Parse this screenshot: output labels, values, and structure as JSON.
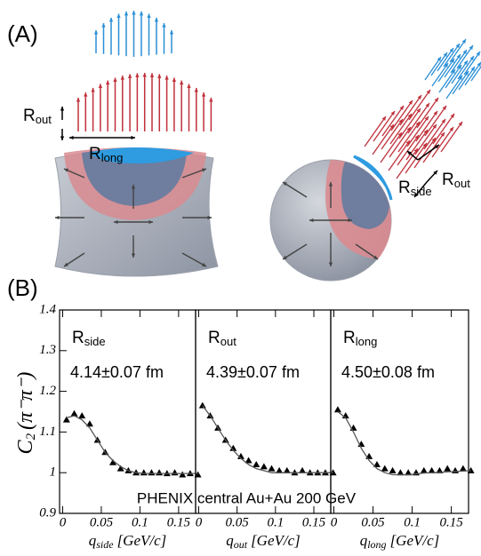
{
  "panel_a": {
    "label": "(A)",
    "left": {
      "r_out": {
        "main": "R",
        "sub": "out"
      },
      "r_long": {
        "main": "R",
        "sub": "long"
      }
    },
    "right": {
      "r_side": {
        "main": "R",
        "sub": "side"
      },
      "r_out": {
        "main": "R",
        "sub": "out"
      }
    }
  },
  "panel_b": {
    "label": "(B)",
    "y_label": {
      "main": "C",
      "sub": "2",
      "rest": "(π⁻π⁻)"
    },
    "annotation": "PHENIX  central Au+Au 200 GeV"
  },
  "chart_data": [
    {
      "type": "scatter",
      "radius": {
        "main": "R",
        "sub": "side"
      },
      "value_text": "4.14±0.07 fm",
      "x_label": {
        "main": "q",
        "sub": "side",
        "rest": "[GeV/c]"
      },
      "x": [
        0.005,
        0.015,
        0.025,
        0.035,
        0.045,
        0.055,
        0.065,
        0.075,
        0.085,
        0.095,
        0.105,
        0.115,
        0.125,
        0.135,
        0.145,
        0.155,
        0.165,
        0.175
      ],
      "series": [
        {
          "type": "scatter",
          "color": "#000000",
          "values": [
            1.13,
            1.145,
            1.14,
            1.12,
            1.08,
            1.05,
            1.025,
            1.01,
            1.005,
            1.0,
            1.0,
            1.0,
            1.0,
            0.998,
            1.0,
            0.995,
            0.998,
            0.995
          ]
        },
        {
          "type": "line",
          "color": "#555555",
          "values": [
            1.135,
            1.14,
            1.13,
            1.11,
            1.08,
            1.05,
            1.03,
            1.015,
            1.005,
            1.0,
            0.998,
            0.998,
            0.998,
            0.998,
            0.998,
            0.998,
            0.998,
            0.998
          ]
        }
      ],
      "xlim": [
        -0.004,
        0.172
      ],
      "ylim": [
        0.9,
        1.4
      ],
      "xticks": [
        0,
        0.05,
        0.1,
        0.15
      ],
      "yticks": [
        0.9,
        1,
        1.1,
        1.2,
        1.3,
        1.4
      ]
    },
    {
      "type": "scatter",
      "radius": {
        "main": "R",
        "sub": "out"
      },
      "value_text": "4.39±0.07 fm",
      "x_label": {
        "main": "q",
        "sub": "out",
        "rest": "[GeV/c]"
      },
      "x": [
        0.005,
        0.015,
        0.025,
        0.035,
        0.045,
        0.055,
        0.065,
        0.075,
        0.085,
        0.095,
        0.105,
        0.115,
        0.125,
        0.135,
        0.145,
        0.155,
        0.165,
        0.175
      ],
      "series": [
        {
          "type": "scatter",
          "color": "#000000",
          "values": [
            1.165,
            1.14,
            1.11,
            1.08,
            1.06,
            1.04,
            1.03,
            1.02,
            1.015,
            1.01,
            1.005,
            1.005,
            1.0,
            1.005,
            1.0,
            1.0,
            1.0,
            1.0
          ]
        },
        {
          "type": "line",
          "color": "#555555",
          "values": [
            1.165,
            1.14,
            1.11,
            1.08,
            1.055,
            1.035,
            1.02,
            1.01,
            1.005,
            1.0,
            1.0,
            1.0,
            1.0,
            1.0,
            1.0,
            1.0,
            1.0,
            1.0
          ]
        }
      ],
      "xlim": [
        -0.004,
        0.172
      ],
      "ylim": [
        0.9,
        1.4
      ],
      "xticks": [
        0,
        0.05,
        0.1,
        0.15
      ]
    },
    {
      "type": "scatter",
      "radius": {
        "main": "R",
        "sub": "long"
      },
      "value_text": "4.50±0.08 fm",
      "x_label": {
        "main": "q",
        "sub": "long",
        "rest": "[GeV/c]"
      },
      "x": [
        0.005,
        0.015,
        0.025,
        0.035,
        0.045,
        0.055,
        0.065,
        0.075,
        0.085,
        0.095,
        0.105,
        0.115,
        0.125,
        0.135,
        0.145,
        0.155,
        0.165,
        0.175
      ],
      "series": [
        {
          "type": "scatter",
          "color": "#000000",
          "values": [
            1.155,
            1.14,
            1.11,
            1.07,
            1.04,
            1.02,
            1.01,
            1.005,
            1.0,
            1.0,
            1.0,
            1.005,
            1.005,
            1.005,
            1.01,
            1.005,
            1.01,
            1.005
          ]
        },
        {
          "type": "line",
          "color": "#555555",
          "values": [
            1.15,
            1.135,
            1.1,
            1.06,
            1.03,
            1.01,
            1.0,
            0.995,
            0.995,
            0.995,
            0.997,
            0.999,
            1.0,
            1.001,
            1.002,
            1.003,
            1.004,
            1.005
          ]
        }
      ],
      "xlim": [
        -0.004,
        0.172
      ],
      "ylim": [
        0.9,
        1.4
      ],
      "xticks": [
        0,
        0.05,
        0.1,
        0.15
      ]
    }
  ]
}
